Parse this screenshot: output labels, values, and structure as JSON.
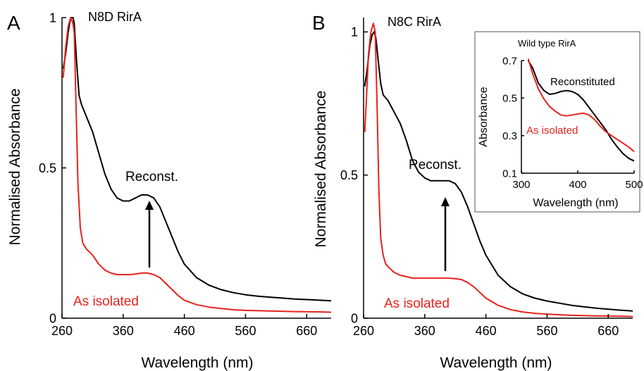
{
  "figure": {
    "colors": {
      "reconstituted": "#000000",
      "as_isolated": "#e8221c",
      "axis": "#000000"
    }
  },
  "chart_data": [
    {
      "id": "A",
      "type": "line",
      "panel_letter": "A",
      "title": "N8D RirA",
      "xlabel": "Wavelength (nm)",
      "ylabel": "Normalised Absorbance",
      "xlim": [
        260,
        700
      ],
      "ylim": [
        0,
        1
      ],
      "xticks": [
        260,
        360,
        460,
        560,
        660
      ],
      "yticks": [
        0,
        0.5,
        1
      ],
      "ytick_labels": [
        "0",
        "0.5",
        "1"
      ],
      "series": [
        {
          "key": "reconst",
          "label": "Reconst.",
          "color": "#000000",
          "x": [
            262,
            266,
            270,
            274,
            278,
            280,
            284,
            288,
            292,
            296,
            300,
            310,
            320,
            330,
            340,
            350,
            360,
            370,
            380,
            390,
            400,
            410,
            420,
            430,
            440,
            450,
            460,
            480,
            500,
            520,
            540,
            560,
            580,
            600,
            620,
            640,
            660,
            680,
            700
          ],
          "y": [
            0.83,
            0.88,
            0.95,
            1.0,
            1.0,
            0.98,
            0.85,
            0.74,
            0.71,
            0.69,
            0.67,
            0.62,
            0.55,
            0.48,
            0.43,
            0.4,
            0.39,
            0.39,
            0.4,
            0.41,
            0.41,
            0.4,
            0.37,
            0.32,
            0.27,
            0.22,
            0.18,
            0.135,
            0.11,
            0.095,
            0.085,
            0.078,
            0.073,
            0.07,
            0.067,
            0.064,
            0.062,
            0.06,
            0.058
          ]
        },
        {
          "key": "isolated",
          "label": "As isolated",
          "color": "#e8221c",
          "x": [
            262,
            266,
            270,
            274,
            278,
            280,
            283,
            286,
            290,
            294,
            300,
            310,
            320,
            330,
            340,
            350,
            360,
            370,
            380,
            390,
            400,
            410,
            420,
            430,
            440,
            450,
            460,
            480,
            500,
            520,
            540,
            560,
            600,
            640,
            680,
            700
          ],
          "y": [
            0.8,
            0.9,
            0.97,
            1.0,
            0.98,
            0.95,
            0.7,
            0.45,
            0.3,
            0.25,
            0.23,
            0.21,
            0.18,
            0.16,
            0.15,
            0.145,
            0.145,
            0.145,
            0.147,
            0.15,
            0.15,
            0.145,
            0.135,
            0.115,
            0.095,
            0.075,
            0.06,
            0.045,
            0.037,
            0.032,
            0.028,
            0.026,
            0.024,
            0.022,
            0.021,
            0.02
          ]
        }
      ]
    },
    {
      "id": "B",
      "type": "line",
      "panel_letter": "B",
      "title": "N8C RirA",
      "xlabel": "Wavelength (nm)",
      "ylabel": "Normalised Absorbance",
      "xlim": [
        260,
        700
      ],
      "ylim": [
        0,
        1.05
      ],
      "xticks": [
        260,
        360,
        460,
        560,
        660
      ],
      "yticks": [
        0,
        0.5,
        1
      ],
      "ytick_labels": [
        "0",
        "0.5",
        "1"
      ],
      "series": [
        {
          "key": "reconst",
          "label": "Reconst.",
          "color": "#000000",
          "x": [
            262,
            266,
            270,
            274,
            277,
            280,
            284,
            288,
            292,
            296,
            300,
            305,
            310,
            320,
            330,
            340,
            350,
            360,
            370,
            380,
            390,
            400,
            410,
            420,
            430,
            440,
            450,
            460,
            480,
            500,
            520,
            540,
            560,
            600,
            640,
            680,
            700
          ],
          "y": [
            0.81,
            0.87,
            0.95,
            0.99,
            1.0,
            0.98,
            0.9,
            0.82,
            0.78,
            0.77,
            0.76,
            0.74,
            0.72,
            0.68,
            0.62,
            0.55,
            0.51,
            0.49,
            0.48,
            0.48,
            0.48,
            0.48,
            0.47,
            0.44,
            0.39,
            0.33,
            0.27,
            0.22,
            0.15,
            0.11,
            0.085,
            0.07,
            0.06,
            0.045,
            0.035,
            0.028,
            0.025
          ]
        },
        {
          "key": "isolated",
          "label": "As isolated",
          "color": "#e8221c",
          "x": [
            262,
            265,
            268,
            272,
            276,
            279,
            282,
            285,
            288,
            292,
            296,
            300,
            310,
            320,
            330,
            340,
            350,
            360,
            370,
            380,
            390,
            400,
            410,
            420,
            430,
            440,
            450,
            460,
            480,
            500,
            520,
            540,
            560,
            600,
            640,
            680,
            700
          ],
          "y": [
            0.65,
            0.78,
            0.92,
            1.0,
            1.03,
            1.0,
            0.75,
            0.45,
            0.28,
            0.22,
            0.19,
            0.18,
            0.16,
            0.15,
            0.145,
            0.14,
            0.14,
            0.14,
            0.14,
            0.14,
            0.14,
            0.14,
            0.138,
            0.135,
            0.125,
            0.11,
            0.09,
            0.07,
            0.045,
            0.03,
            0.022,
            0.017,
            0.014,
            0.01,
            0.008,
            0.007,
            0.006
          ]
        }
      ]
    },
    {
      "id": "inset",
      "type": "line",
      "title": "Wild type RirA",
      "xlabel": "Wavelength (nm)",
      "ylabel": "Absorbance",
      "xlim": [
        300,
        500
      ],
      "ylim": [
        0.1,
        0.7
      ],
      "xticks": [
        300,
        400,
        500
      ],
      "yticks": [
        0.1,
        0.3,
        0.5,
        0.7
      ],
      "ytick_labels": [
        "0.1",
        "0.3",
        "0.5",
        "0.7"
      ],
      "series": [
        {
          "key": "reconst",
          "label": "Reconstituted",
          "color": "#000000",
          "x": [
            312,
            320,
            330,
            340,
            350,
            360,
            370,
            380,
            390,
            400,
            410,
            420,
            430,
            440,
            450,
            460,
            470,
            480,
            490,
            500
          ],
          "y": [
            0.7,
            0.66,
            0.58,
            0.54,
            0.52,
            0.525,
            0.535,
            0.54,
            0.535,
            0.52,
            0.49,
            0.45,
            0.41,
            0.37,
            0.33,
            0.28,
            0.24,
            0.205,
            0.18,
            0.165
          ]
        },
        {
          "key": "isolated",
          "label": "As isolated",
          "color": "#e8221c",
          "x": [
            312,
            320,
            330,
            340,
            350,
            360,
            370,
            380,
            390,
            400,
            410,
            420,
            430,
            440,
            450,
            460,
            470,
            480,
            490,
            500
          ],
          "y": [
            0.71,
            0.63,
            0.55,
            0.495,
            0.455,
            0.43,
            0.41,
            0.405,
            0.41,
            0.415,
            0.42,
            0.41,
            0.385,
            0.35,
            0.32,
            0.3,
            0.28,
            0.26,
            0.24,
            0.215
          ]
        }
      ]
    }
  ]
}
